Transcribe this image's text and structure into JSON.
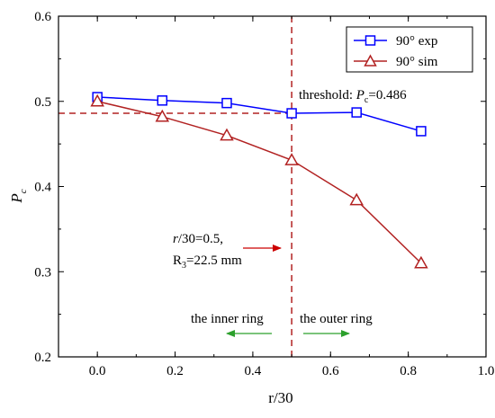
{
  "chart_data": {
    "type": "line",
    "xlabel": "r/30",
    "ylabel_main": "P",
    "ylabel_sub": "c",
    "xlim": [
      -0.1,
      1.0
    ],
    "ylim": [
      0.2,
      0.6
    ],
    "xticks": [
      "0.0",
      "0.2",
      "0.4",
      "0.6",
      "0.8",
      "1.0"
    ],
    "xtick_values": [
      0.0,
      0.2,
      0.4,
      0.6,
      0.8,
      1.0
    ],
    "yticks": [
      "0.2",
      "0.3",
      "0.4",
      "0.5",
      "0.6"
    ],
    "ytick_values": [
      0.2,
      0.3,
      0.4,
      0.5,
      0.6
    ],
    "legend_position": "top-right",
    "grid": false,
    "series": [
      {
        "name": "90°  exp",
        "marker": "square",
        "color": "#0000ff",
        "x": [
          0.0,
          0.167,
          0.333,
          0.5,
          0.667,
          0.833
        ],
        "y": [
          0.505,
          0.501,
          0.498,
          0.486,
          0.487,
          0.465
        ]
      },
      {
        "name": "90°  sim",
        "marker": "triangle",
        "color": "#b22222",
        "x": [
          0.0,
          0.167,
          0.333,
          0.5,
          0.667,
          0.833
        ],
        "y": [
          0.5,
          0.482,
          0.46,
          0.431,
          0.384,
          0.31
        ]
      }
    ],
    "reference_lines": {
      "vertical_x": 0.5,
      "horizontal_y": 0.486,
      "color": "#b22222"
    },
    "annotations": {
      "threshold_prefix": "threshold: ",
      "threshold_var": "P",
      "threshold_sub": "c",
      "threshold_value": "=0.486",
      "r_label_var": "r",
      "r_label_rest": "/30=0.5,",
      "r3_label_prefix": "R",
      "r3_label_sub": "3",
      "r3_label_rest": "=22.5 mm",
      "inner_ring": "the inner ring",
      "outer_ring": "the outer ring",
      "arrow_color_red": "#cc0000",
      "arrow_color_green": "#2ca02c"
    }
  }
}
